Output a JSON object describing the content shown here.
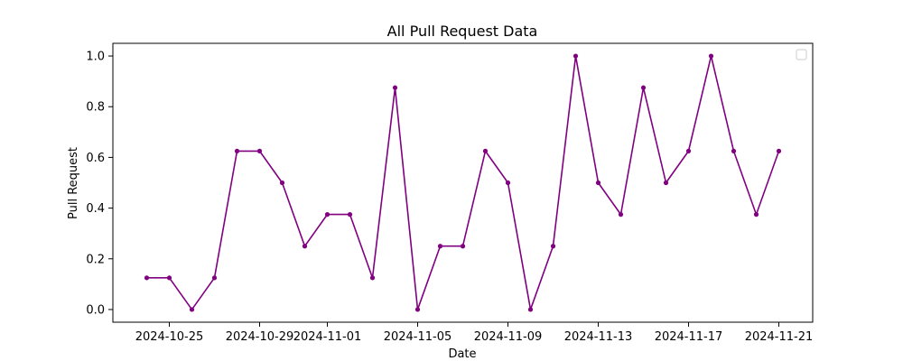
{
  "chart_data": {
    "type": "line",
    "title": "All Pull Request Data",
    "xlabel": "Date",
    "ylabel": "Pull Request",
    "x": [
      "2024-10-24",
      "2024-10-25",
      "2024-10-26",
      "2024-10-27",
      "2024-10-28",
      "2024-10-29",
      "2024-10-30",
      "2024-10-31",
      "2024-11-01",
      "2024-11-02",
      "2024-11-03",
      "2024-11-04",
      "2024-11-05",
      "2024-11-06",
      "2024-11-07",
      "2024-11-08",
      "2024-11-09",
      "2024-11-10",
      "2024-11-11",
      "2024-11-12",
      "2024-11-13",
      "2024-11-14",
      "2024-11-15",
      "2024-11-16",
      "2024-11-17",
      "2024-11-18",
      "2024-11-19",
      "2024-11-20",
      "2024-11-21"
    ],
    "series": [
      {
        "values": [
          0.125,
          0.125,
          0.0,
          0.125,
          0.625,
          0.625,
          0.5,
          0.25,
          0.375,
          0.375,
          0.125,
          0.875,
          0.0,
          0.25,
          0.25,
          0.625,
          0.5,
          0.0,
          0.25,
          1.0,
          0.5,
          0.375,
          0.875,
          0.5,
          0.625,
          1.0,
          0.625,
          0.375,
          0.625
        ],
        "color": "#800080",
        "marker": "circle"
      }
    ],
    "xticks": [
      "2024-10-25",
      "2024-10-29",
      "2024-11-01",
      "2024-11-05",
      "2024-11-09",
      "2024-11-13",
      "2024-11-17",
      "2024-11-21"
    ],
    "yticks": [
      0.0,
      0.2,
      0.4,
      0.6,
      0.8,
      1.0
    ],
    "ytick_labels": [
      "0.0",
      "0.2",
      "0.4",
      "0.6",
      "0.8",
      "1.0"
    ],
    "xlim": [
      "2024-10-22T12:00",
      "2024-11-22T12:00"
    ],
    "ylim": [
      -0.05,
      1.05
    ],
    "grid": false,
    "legend": {
      "placement": "top-right",
      "entries": []
    }
  }
}
